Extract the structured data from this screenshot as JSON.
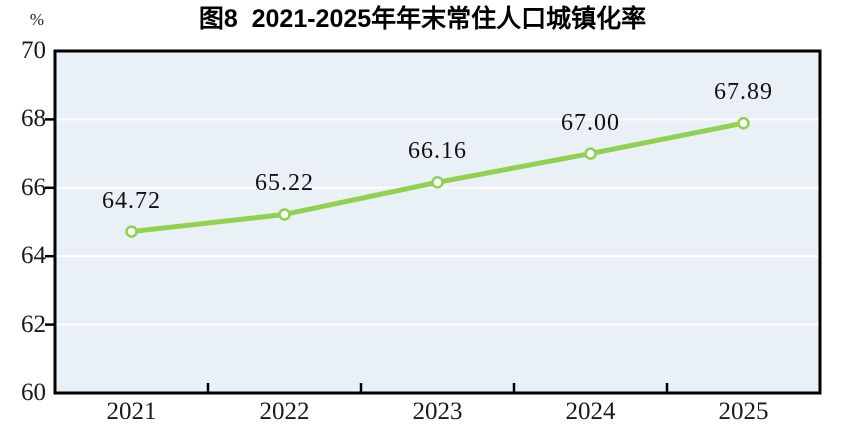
{
  "page": {
    "background": "#ffffff"
  },
  "chart_data": {
    "type": "line",
    "title": "图8  2021-2025年年末常住人口城镇化率",
    "ylabel": "%",
    "xlabel": "",
    "categories": [
      "2021",
      "2022",
      "2023",
      "2024",
      "2025"
    ],
    "series": [
      {
        "name": "年末常住人口城镇化率",
        "values": [
          64.72,
          65.22,
          66.16,
          67.0,
          67.89
        ],
        "labels": [
          "64.72",
          "65.22",
          "66.16",
          "67.00",
          "67.89"
        ]
      }
    ],
    "ylim": [
      60,
      70
    ],
    "yticks": [
      60,
      62,
      64,
      66,
      68,
      70
    ],
    "grid": "horizontal",
    "legend_position": "none",
    "colors": {
      "line": "#92d050",
      "marker_fill": "#ffffff",
      "marker_stroke": "#92d050",
      "plot_background": "#e9f1f7",
      "gridline": "#ffffff",
      "axis": "#000000",
      "tick_text": "#1a1a1a",
      "title_text": "#000000"
    }
  }
}
